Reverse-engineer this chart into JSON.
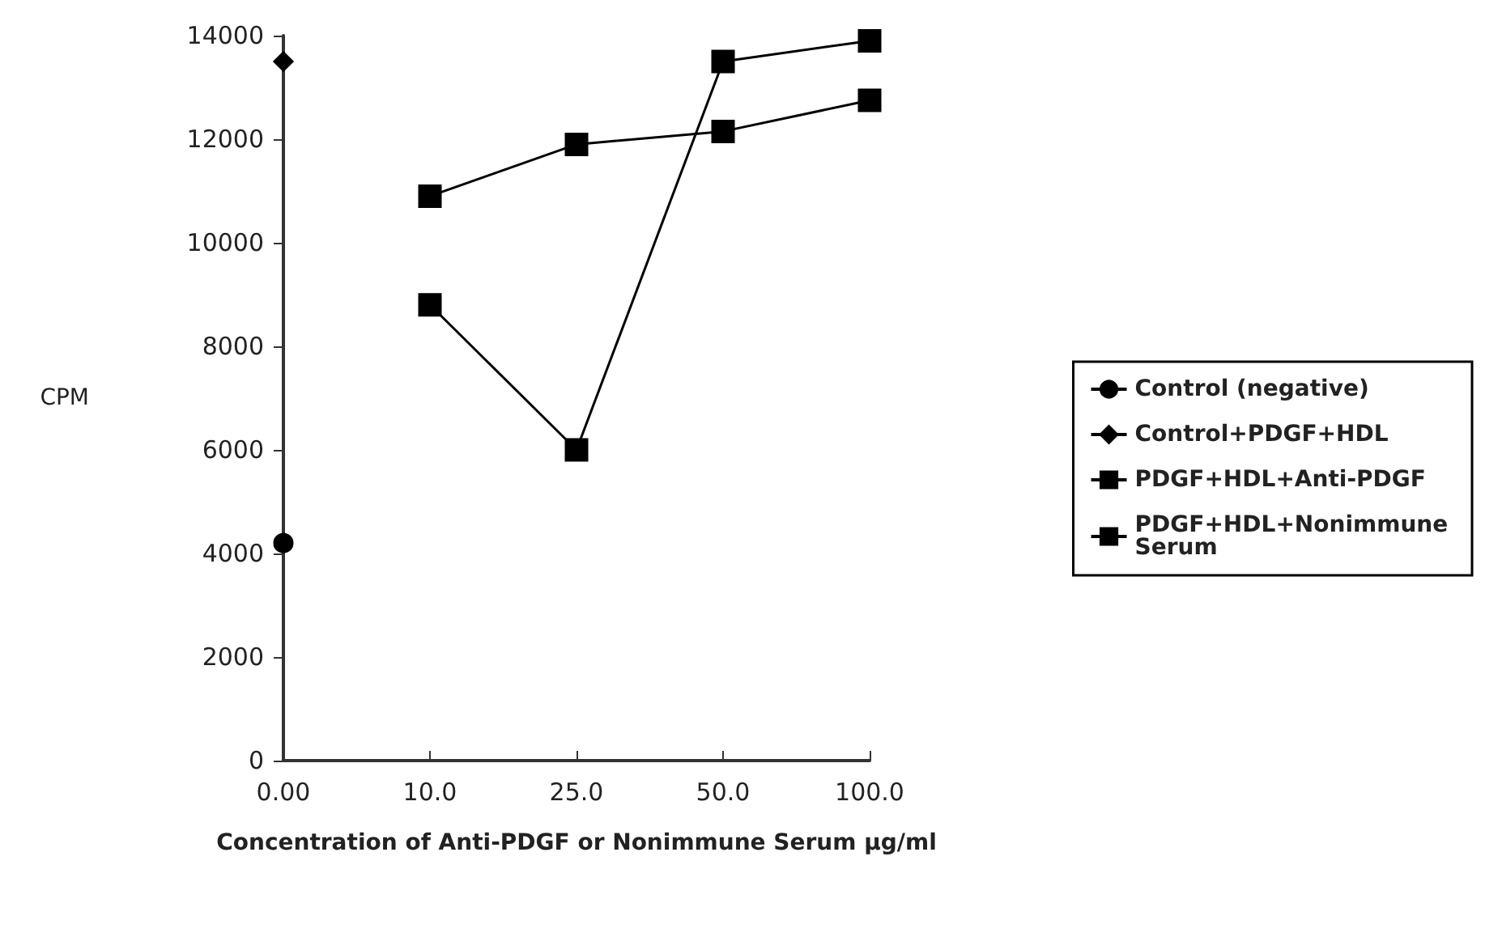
{
  "chart_data": {
    "type": "line",
    "xlabel": "Concentration of Anti-PDGF or Nonimmune Serum µg/ml",
    "ylabel": "CPM",
    "categories": [
      "0.00",
      "10.0",
      "25.0",
      "50.0",
      "100.0"
    ],
    "ylim": [
      0,
      14000
    ],
    "yticks": [
      0,
      2000,
      4000,
      6000,
      8000,
      10000,
      12000,
      14000
    ],
    "grid": false,
    "legend": "right",
    "line_style": "solid",
    "series": [
      {
        "name": "Control (negative)",
        "color": "#000000",
        "marker": "circle",
        "values": [
          4200,
          null,
          null,
          null,
          null
        ]
      },
      {
        "name": "Control+PDGF+HDL",
        "color": "#000000",
        "marker": "diamond",
        "values": [
          13500,
          null,
          null,
          null,
          null
        ]
      },
      {
        "name": "PDGF+HDL+Anti-PDGF",
        "color": "#000000",
        "marker": "square",
        "values": [
          null,
          10900,
          11900,
          12150,
          12750
        ]
      },
      {
        "name": "PDGF+HDL+Nonimmune Serum",
        "color": "#000000",
        "marker": "square",
        "values": [
          null,
          8800,
          6000,
          13500,
          13900
        ]
      }
    ]
  }
}
